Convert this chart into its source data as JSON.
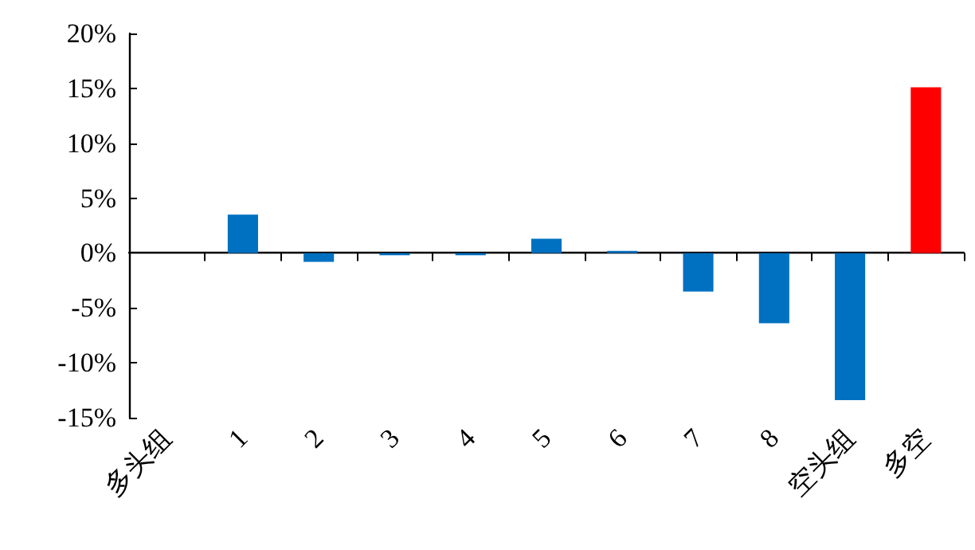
{
  "chart_data": {
    "type": "bar",
    "categories": [
      "多头组",
      "1",
      "2",
      "3",
      "4",
      "5",
      "6",
      "7",
      "8",
      "空头组",
      "多空"
    ],
    "values": [
      null,
      3.5,
      -0.8,
      -0.2,
      -0.2,
      1.3,
      0.2,
      -3.5,
      -6.4,
      -13.4,
      15.1
    ],
    "colors": [
      "#0070c0",
      "#0070c0",
      "#0070c0",
      "#0070c0",
      "#0070c0",
      "#0070c0",
      "#0070c0",
      "#0070c0",
      "#0070c0",
      "#0070c0",
      "#ff0000"
    ],
    "yticks": [
      {
        "value": -15,
        "label": "-15%"
      },
      {
        "value": -10,
        "label": "-10%"
      },
      {
        "value": -5,
        "label": "-5%"
      },
      {
        "value": 0,
        "label": "0%"
      },
      {
        "value": 5,
        "label": "5%"
      },
      {
        "value": 10,
        "label": "10%"
      },
      {
        "value": 15,
        "label": "15%"
      },
      {
        "value": 20,
        "label": "20%"
      }
    ],
    "ylim": [
      -15,
      20
    ]
  }
}
